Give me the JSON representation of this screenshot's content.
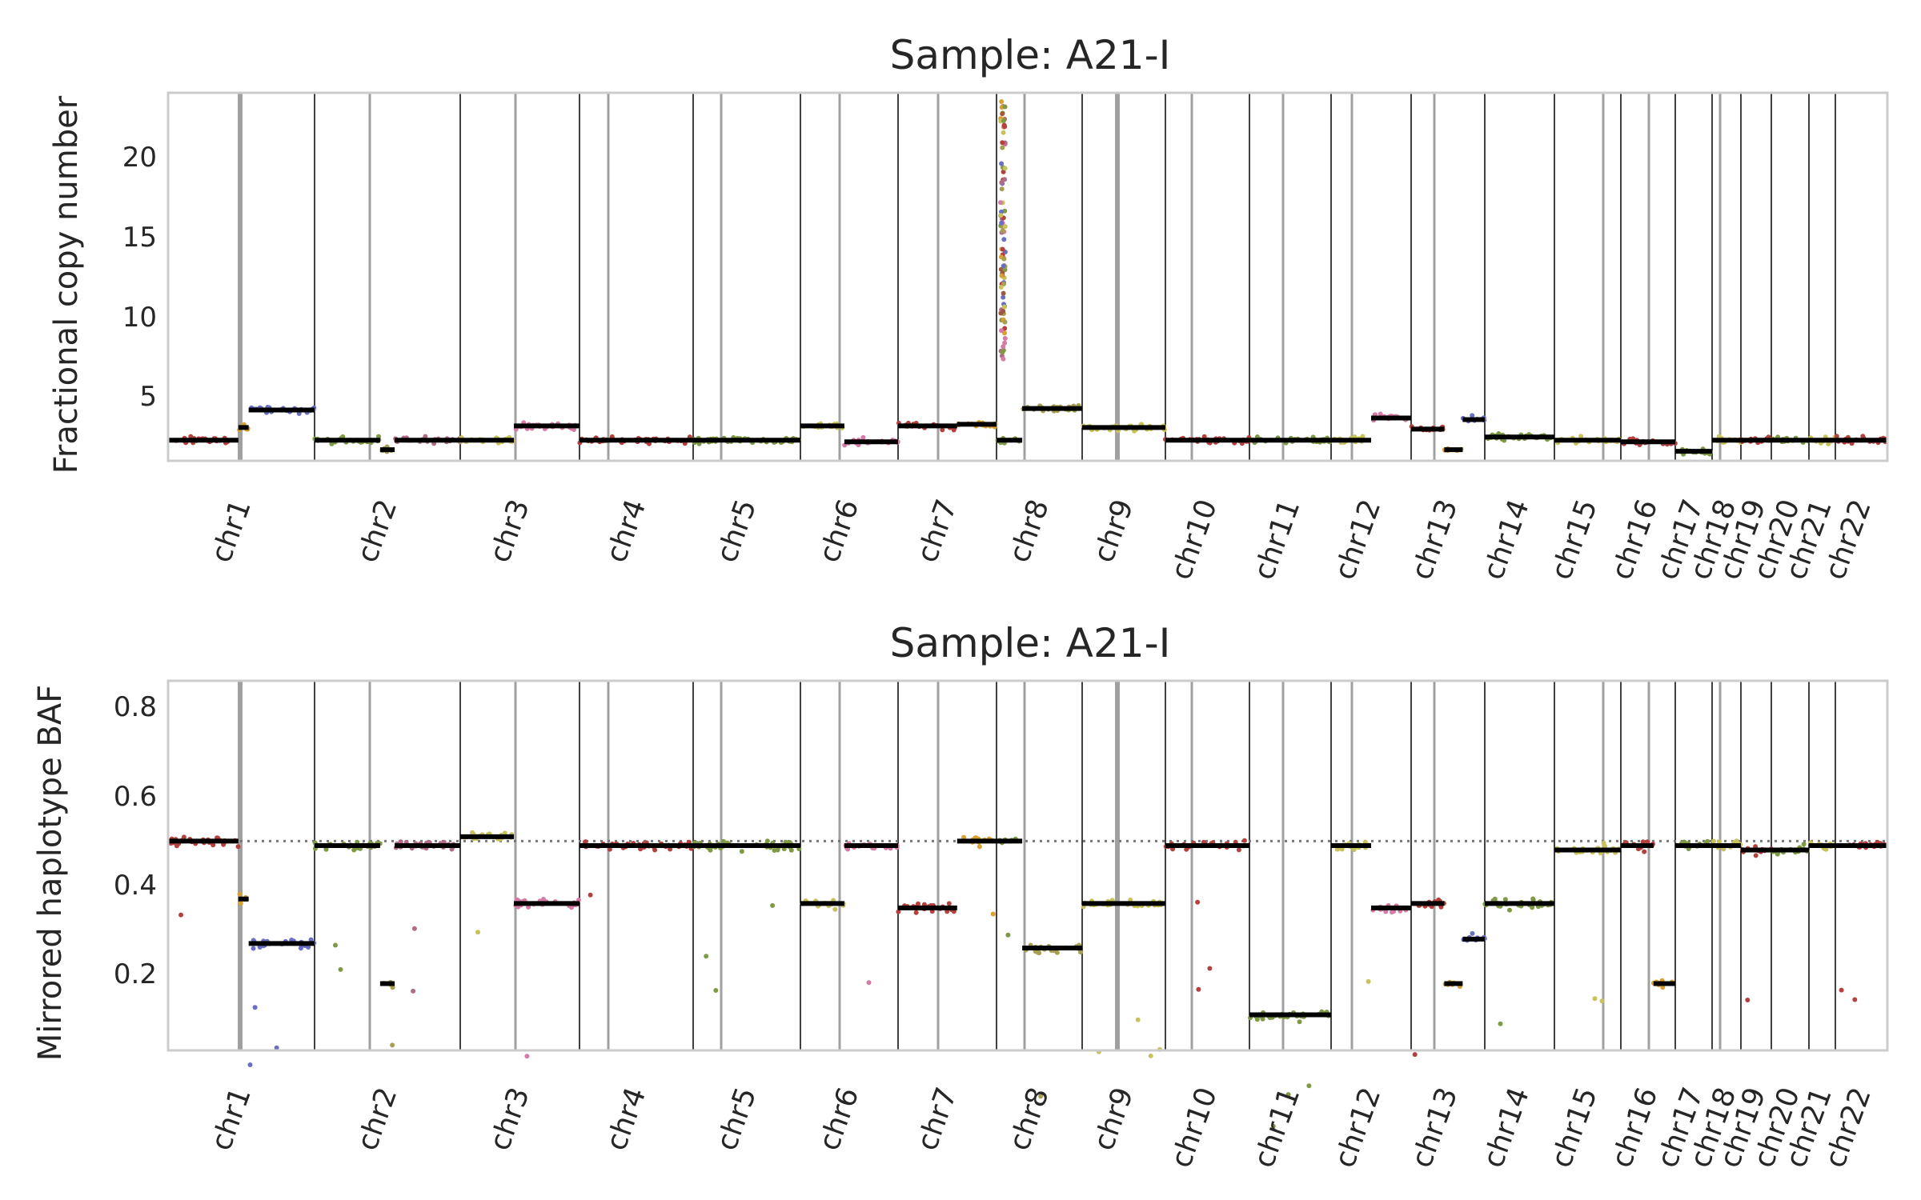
{
  "chart_data": [
    {
      "type": "scatter",
      "title": "Sample: A21-I",
      "ylabel": "Fractional copy number",
      "ylim": [
        0.8,
        24
      ],
      "yticks": [
        "5",
        "10",
        "15",
        "20"
      ],
      "grid": false,
      "chromosomes": [
        "chr1",
        "chr2",
        "chr3",
        "chr4",
        "chr5",
        "chr6",
        "chr7",
        "chr8",
        "chr9",
        "chr10",
        "chr11",
        "chr12",
        "chr13",
        "chr14",
        "chr15",
        "chr16",
        "chr17",
        "chr18",
        "chr19",
        "chr20",
        "chr21",
        "chr22"
      ],
      "point_colors": [
        "#b5413f",
        "#d8a131",
        "#6b6fc4",
        "#7f9a45",
        "#a69f52",
        "#b16b88",
        "#c8c25c",
        "#d57ba5",
        "#9e5a3c"
      ],
      "segments": [
        {
          "chr": "chr1",
          "parts": [
            [
              0,
              0.48,
              2.1
            ],
            [
              0.48,
              0.55,
              2.9
            ],
            [
              0.55,
              1.0,
              4.0
            ]
          ]
        },
        {
          "chr": "chr2",
          "parts": [
            [
              0,
              0.45,
              2.1
            ],
            [
              0.45,
              0.55,
              1.5
            ],
            [
              0.55,
              1.0,
              2.1
            ]
          ]
        },
        {
          "chr": "chr3",
          "parts": [
            [
              0,
              0.45,
              2.1
            ],
            [
              0.45,
              1.0,
              3.0
            ]
          ]
        },
        {
          "chr": "chr4",
          "parts": [
            [
              0,
              1.0,
              2.1
            ]
          ]
        },
        {
          "chr": "chr5",
          "parts": [
            [
              0,
              1.0,
              2.1
            ]
          ]
        },
        {
          "chr": "chr6",
          "parts": [
            [
              0,
              0.45,
              3.0
            ],
            [
              0.45,
              1.0,
              2.0
            ]
          ]
        },
        {
          "chr": "chr7",
          "parts": [
            [
              0,
              0.6,
              3.0
            ],
            [
              0.6,
              1.0,
              3.1
            ]
          ]
        },
        {
          "chr": "chr8",
          "parts": [
            [
              0,
              0.3,
              2.1
            ],
            [
              0.3,
              1.0,
              4.1
            ]
          ]
        },
        {
          "chr": "chr9",
          "parts": [
            [
              0,
              1.0,
              2.9
            ]
          ]
        },
        {
          "chr": "chr10",
          "parts": [
            [
              0,
              1.0,
              2.1
            ]
          ]
        },
        {
          "chr": "chr11",
          "parts": [
            [
              0,
              1.0,
              2.1
            ]
          ]
        },
        {
          "chr": "chr12",
          "parts": [
            [
              0,
              0.5,
              2.1
            ],
            [
              0.5,
              1.0,
              3.5
            ]
          ]
        },
        {
          "chr": "chr13",
          "parts": [
            [
              0,
              0.45,
              2.8
            ],
            [
              0.45,
              0.7,
              1.5
            ],
            [
              0.7,
              1.0,
              3.4
            ]
          ]
        },
        {
          "chr": "chr14",
          "parts": [
            [
              0,
              1.0,
              2.3
            ]
          ]
        },
        {
          "chr": "chr15",
          "parts": [
            [
              0,
              1.0,
              2.1
            ]
          ]
        },
        {
          "chr": "chr16",
          "parts": [
            [
              0,
              1.0,
              2.0
            ]
          ]
        },
        {
          "chr": "chr17",
          "parts": [
            [
              0,
              1.0,
              1.4
            ]
          ]
        },
        {
          "chr": "chr18",
          "parts": [
            [
              0,
              1.0,
              2.1
            ]
          ]
        },
        {
          "chr": "chr19",
          "parts": [
            [
              0,
              1.0,
              2.1
            ]
          ]
        },
        {
          "chr": "chr20",
          "parts": [
            [
              0,
              1.0,
              2.1
            ]
          ]
        },
        {
          "chr": "chr21",
          "parts": [
            [
              0,
              1.0,
              2.1
            ]
          ]
        },
        {
          "chr": "chr22",
          "parts": [
            [
              0,
              1.0,
              2.1
            ]
          ]
        }
      ],
      "outliers": {
        "chr": "chr8",
        "min": 7,
        "max": 23.5
      }
    },
    {
      "type": "scatter",
      "title": "Sample: A21-I",
      "ylabel": "Mirrored haplotype BAF",
      "ylim": [
        0.03,
        0.86
      ],
      "yticks": [
        "0.2",
        "0.4",
        "0.6",
        "0.8"
      ],
      "reference_line": 0.5,
      "grid": false,
      "chromosomes": [
        "chr1",
        "chr2",
        "chr3",
        "chr4",
        "chr5",
        "chr6",
        "chr7",
        "chr8",
        "chr9",
        "chr10",
        "chr11",
        "chr12",
        "chr13",
        "chr14",
        "chr15",
        "chr16",
        "chr17",
        "chr18",
        "chr19",
        "chr20",
        "chr21",
        "chr22"
      ],
      "point_colors": [
        "#b5413f",
        "#d8a131",
        "#6b6fc4",
        "#7f9a45",
        "#a69f52",
        "#b16b88",
        "#c8c25c",
        "#d57ba5",
        "#9e5a3c"
      ],
      "segments": [
        {
          "chr": "chr1",
          "parts": [
            [
              0,
              0.48,
              0.5
            ],
            [
              0.48,
              0.55,
              0.37
            ],
            [
              0.55,
              1.0,
              0.27
            ]
          ]
        },
        {
          "chr": "chr2",
          "parts": [
            [
              0,
              0.45,
              0.49
            ],
            [
              0.45,
              0.55,
              0.18
            ],
            [
              0.55,
              1.0,
              0.49
            ]
          ]
        },
        {
          "chr": "chr3",
          "parts": [
            [
              0,
              0.45,
              0.51
            ],
            [
              0.45,
              1.0,
              0.36
            ]
          ]
        },
        {
          "chr": "chr4",
          "parts": [
            [
              0,
              1.0,
              0.49
            ]
          ]
        },
        {
          "chr": "chr5",
          "parts": [
            [
              0,
              1.0,
              0.49
            ]
          ]
        },
        {
          "chr": "chr6",
          "parts": [
            [
              0,
              0.45,
              0.36
            ],
            [
              0.45,
              1.0,
              0.49
            ]
          ]
        },
        {
          "chr": "chr7",
          "parts": [
            [
              0,
              0.6,
              0.35
            ],
            [
              0.6,
              1.0,
              0.5
            ]
          ]
        },
        {
          "chr": "chr8",
          "parts": [
            [
              0,
              0.3,
              0.5
            ],
            [
              0.3,
              1.0,
              0.26
            ]
          ]
        },
        {
          "chr": "chr9",
          "parts": [
            [
              0,
              1.0,
              0.36
            ]
          ]
        },
        {
          "chr": "chr10",
          "parts": [
            [
              0,
              1.0,
              0.49
            ]
          ]
        },
        {
          "chr": "chr11",
          "parts": [
            [
              0,
              1.0,
              0.11
            ]
          ]
        },
        {
          "chr": "chr12",
          "parts": [
            [
              0,
              0.5,
              0.49
            ],
            [
              0.5,
              1.0,
              0.35
            ]
          ]
        },
        {
          "chr": "chr13",
          "parts": [
            [
              0,
              0.45,
              0.36
            ],
            [
              0.45,
              0.7,
              0.18
            ],
            [
              0.7,
              1.0,
              0.28
            ]
          ]
        },
        {
          "chr": "chr14",
          "parts": [
            [
              0,
              1.0,
              0.36
            ]
          ]
        },
        {
          "chr": "chr15",
          "parts": [
            [
              0,
              1.0,
              0.48
            ]
          ]
        },
        {
          "chr": "chr16",
          "parts": [
            [
              0,
              0.6,
              0.49
            ],
            [
              0.6,
              1.0,
              0.18
            ]
          ]
        },
        {
          "chr": "chr17",
          "parts": [
            [
              0,
              1.0,
              0.49
            ]
          ]
        },
        {
          "chr": "chr18",
          "parts": [
            [
              0,
              1.0,
              0.49
            ]
          ]
        },
        {
          "chr": "chr19",
          "parts": [
            [
              0,
              1.0,
              0.48
            ]
          ]
        },
        {
          "chr": "chr20",
          "parts": [
            [
              0,
              1.0,
              0.48
            ]
          ]
        },
        {
          "chr": "chr21",
          "parts": [
            [
              0,
              1.0,
              0.49
            ]
          ]
        },
        {
          "chr": "chr22",
          "parts": [
            [
              0,
              1.0,
              0.49
            ]
          ]
        }
      ]
    }
  ]
}
